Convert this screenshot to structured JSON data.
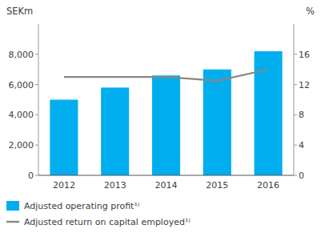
{
  "chart_data": {
    "type": "bar",
    "categories": [
      "2012",
      "2013",
      "2014",
      "2015",
      "2016"
    ],
    "series": [
      {
        "name": "Adjusted operating profit¹⁾",
        "type": "bar",
        "color": "#00AEEF",
        "values": [
          5000,
          5800,
          6600,
          7000,
          8200
        ]
      },
      {
        "name": "Adjusted return on capital employed¹⁾",
        "type": "line",
        "color": "#888880",
        "axis": "y2",
        "values": [
          13.0,
          13.0,
          13.0,
          12.5,
          14.0
        ]
      }
    ],
    "ylim": [
      0,
      10000
    ],
    "yticks": [
      0,
      {
        "value": 2000,
        "label": "2,000"
      },
      {
        "value": 4000,
        "label": "4,000"
      },
      {
        "value": 6000,
        "label": "6,000"
      },
      {
        "value": 8000,
        "label": "8,000"
      }
    ],
    "y2lim": [
      0,
      20
    ],
    "y2ticks": [
      0,
      4,
      8,
      12,
      16
    ],
    "y_label": "SEKm",
    "y2_label": "%",
    "grid": false,
    "legend": "bottom"
  }
}
